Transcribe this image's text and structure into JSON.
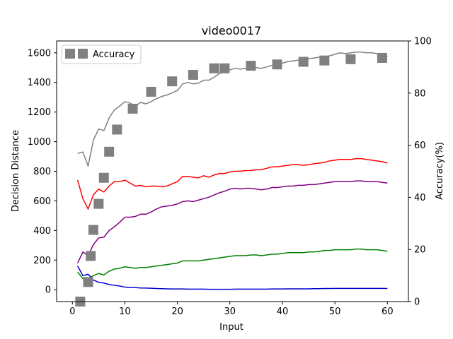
{
  "chart_data": {
    "type": "line",
    "title": "video0017",
    "xlabel": "Input",
    "ylabel": "Decision Distance",
    "y2label": "Accuracy(%)",
    "xlim": [
      -3,
      64
    ],
    "ylim": [
      -80,
      1680
    ],
    "y2lim": [
      0,
      100
    ],
    "xticks": [
      0,
      10,
      20,
      30,
      40,
      50,
      60
    ],
    "yticks": [
      0,
      200,
      400,
      600,
      800,
      1000,
      1200,
      1400,
      1600
    ],
    "y2ticks": [
      0,
      20,
      40,
      60,
      80,
      100
    ],
    "legend": {
      "position": "top-left",
      "entries": [
        "Accuracy"
      ]
    },
    "grid": false,
    "x": [
      1,
      2,
      3,
      4,
      5,
      6,
      7,
      8,
      9,
      10,
      11,
      12,
      13,
      14,
      15,
      16,
      17,
      18,
      19,
      20,
      21,
      22,
      23,
      24,
      25,
      26,
      27,
      28,
      29,
      30,
      31,
      32,
      33,
      34,
      35,
      36,
      37,
      38,
      39,
      40,
      41,
      42,
      43,
      44,
      45,
      46,
      47,
      48,
      49,
      50,
      51,
      52,
      53,
      54,
      55,
      56,
      57,
      58,
      59,
      60
    ],
    "series": [
      {
        "color": "#808080",
        "axis": "left",
        "style": "line",
        "values": [
          920,
          930,
          835,
          1010,
          1085,
          1075,
          1160,
          1215,
          1240,
          1270,
          1260,
          1240,
          1265,
          1255,
          1270,
          1290,
          1305,
          1315,
          1330,
          1345,
          1390,
          1400,
          1390,
          1395,
          1415,
          1415,
          1435,
          1460,
          1470,
          1485,
          1495,
          1490,
          1495,
          1500,
          1500,
          1495,
          1505,
          1515,
          1520,
          1530,
          1540,
          1545,
          1550,
          1550,
          1560,
          1565,
          1570,
          1575,
          1580,
          1590,
          1600,
          1595,
          1600,
          1605,
          1605,
          1600,
          1600,
          1595,
          1590,
          1575
        ]
      },
      {
        "color": "#ff0000",
        "axis": "left",
        "style": "line",
        "values": [
          740,
          615,
          545,
          640,
          680,
          660,
          700,
          730,
          730,
          740,
          720,
          700,
          705,
          695,
          700,
          700,
          695,
          700,
          715,
          730,
          765,
          765,
          760,
          755,
          770,
          760,
          775,
          785,
          785,
          795,
          800,
          800,
          805,
          805,
          810,
          810,
          820,
          830,
          830,
          835,
          840,
          845,
          845,
          840,
          845,
          850,
          855,
          860,
          870,
          875,
          880,
          880,
          880,
          885,
          885,
          880,
          875,
          870,
          865,
          855
        ]
      },
      {
        "color": "#800080",
        "axis": "left",
        "style": "line",
        "values": [
          180,
          255,
          230,
          305,
          350,
          355,
          400,
          425,
          455,
          490,
          490,
          495,
          510,
          510,
          525,
          545,
          560,
          565,
          570,
          580,
          595,
          600,
          595,
          605,
          615,
          625,
          640,
          655,
          665,
          680,
          685,
          680,
          685,
          685,
          680,
          675,
          680,
          690,
          690,
          695,
          700,
          700,
          705,
          705,
          710,
          710,
          715,
          720,
          725,
          730,
          730,
          730,
          730,
          735,
          735,
          730,
          730,
          730,
          725,
          720
        ]
      },
      {
        "color": "#008000",
        "axis": "left",
        "style": "line",
        "values": [
          120,
          75,
          75,
          95,
          110,
          100,
          125,
          140,
          145,
          155,
          150,
          145,
          150,
          150,
          155,
          160,
          165,
          170,
          175,
          180,
          195,
          195,
          195,
          195,
          200,
          205,
          210,
          215,
          220,
          225,
          230,
          230,
          230,
          235,
          235,
          230,
          235,
          240,
          240,
          245,
          250,
          250,
          250,
          250,
          255,
          255,
          260,
          265,
          265,
          270,
          270,
          270,
          270,
          275,
          275,
          270,
          270,
          270,
          265,
          260
        ]
      },
      {
        "color": "#0000cc",
        "axis": "left",
        "style": "line",
        "values": [
          160,
          95,
          105,
          65,
          50,
          45,
          35,
          30,
          25,
          18,
          15,
          14,
          12,
          11,
          10,
          8,
          7,
          6,
          5,
          5,
          5,
          4,
          4,
          4,
          4,
          3,
          3,
          3,
          3,
          3,
          4,
          4,
          4,
          4,
          4,
          4,
          4,
          5,
          5,
          5,
          6,
          6,
          6,
          6,
          6,
          7,
          7,
          8,
          8,
          9,
          9,
          9,
          9,
          9,
          9,
          9,
          9,
          9,
          9,
          8
        ]
      },
      {
        "name": "Accuracy",
        "color": "#808080",
        "axis": "right",
        "style": "square-markers",
        "x": [
          1.5,
          3,
          3.5,
          4,
          5,
          6,
          7,
          8.5,
          11.5,
          15,
          19,
          23,
          27,
          29,
          34,
          39,
          44,
          48,
          53,
          59
        ],
        "values": [
          0,
          7.5,
          17.5,
          27.5,
          37.5,
          47.5,
          57.5,
          66,
          74,
          80.5,
          84.5,
          87,
          89.5,
          89.5,
          90.5,
          91,
          92,
          92.5,
          93,
          93.5
        ]
      }
    ]
  }
}
